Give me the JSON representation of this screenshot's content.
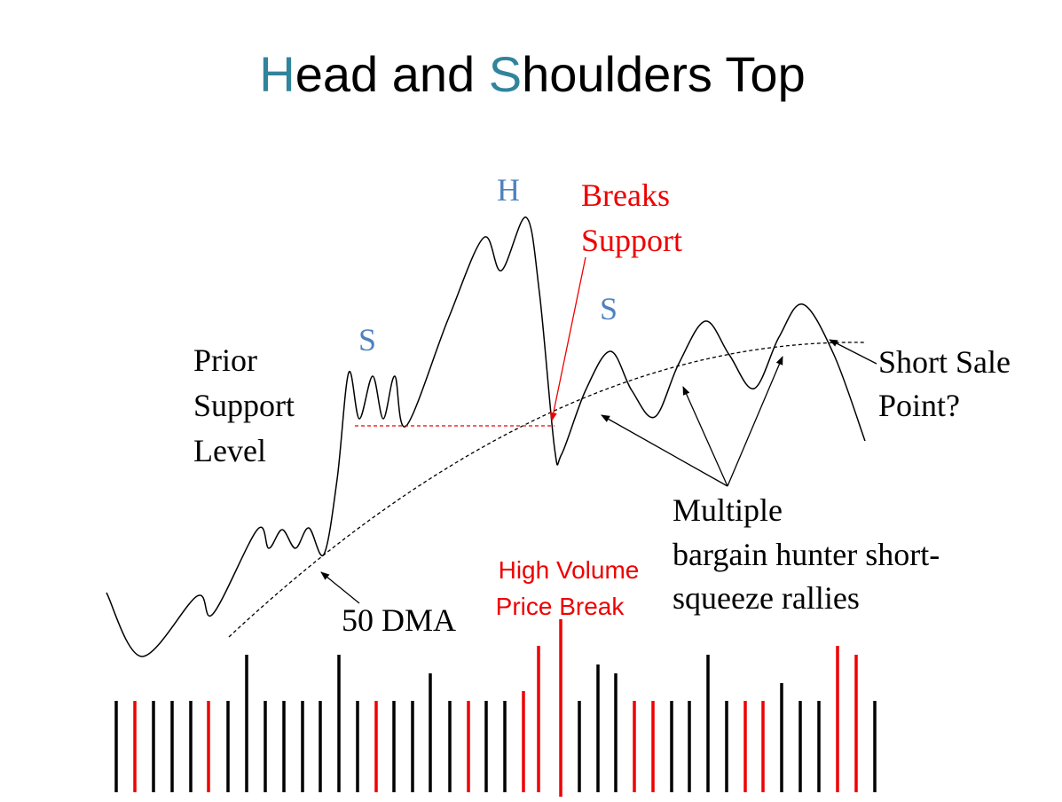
{
  "header": {
    "title_parts": [
      "H",
      "ead and ",
      "S",
      "houlders Top"
    ]
  },
  "labels": {
    "head": "H",
    "left_shoulder": "S",
    "right_shoulder": "S",
    "breaks_support": [
      "Breaks",
      "Support"
    ],
    "prior_support": [
      "Prior",
      "Support",
      "Level"
    ],
    "short_sale": [
      "Short Sale",
      "Point?"
    ],
    "rallies": [
      "Multiple",
      "bargain hunter short-",
      "squeeze rallies"
    ],
    "dma": "50 DMA",
    "high_volume": [
      "High Volume",
      "Price Break"
    ]
  }
}
